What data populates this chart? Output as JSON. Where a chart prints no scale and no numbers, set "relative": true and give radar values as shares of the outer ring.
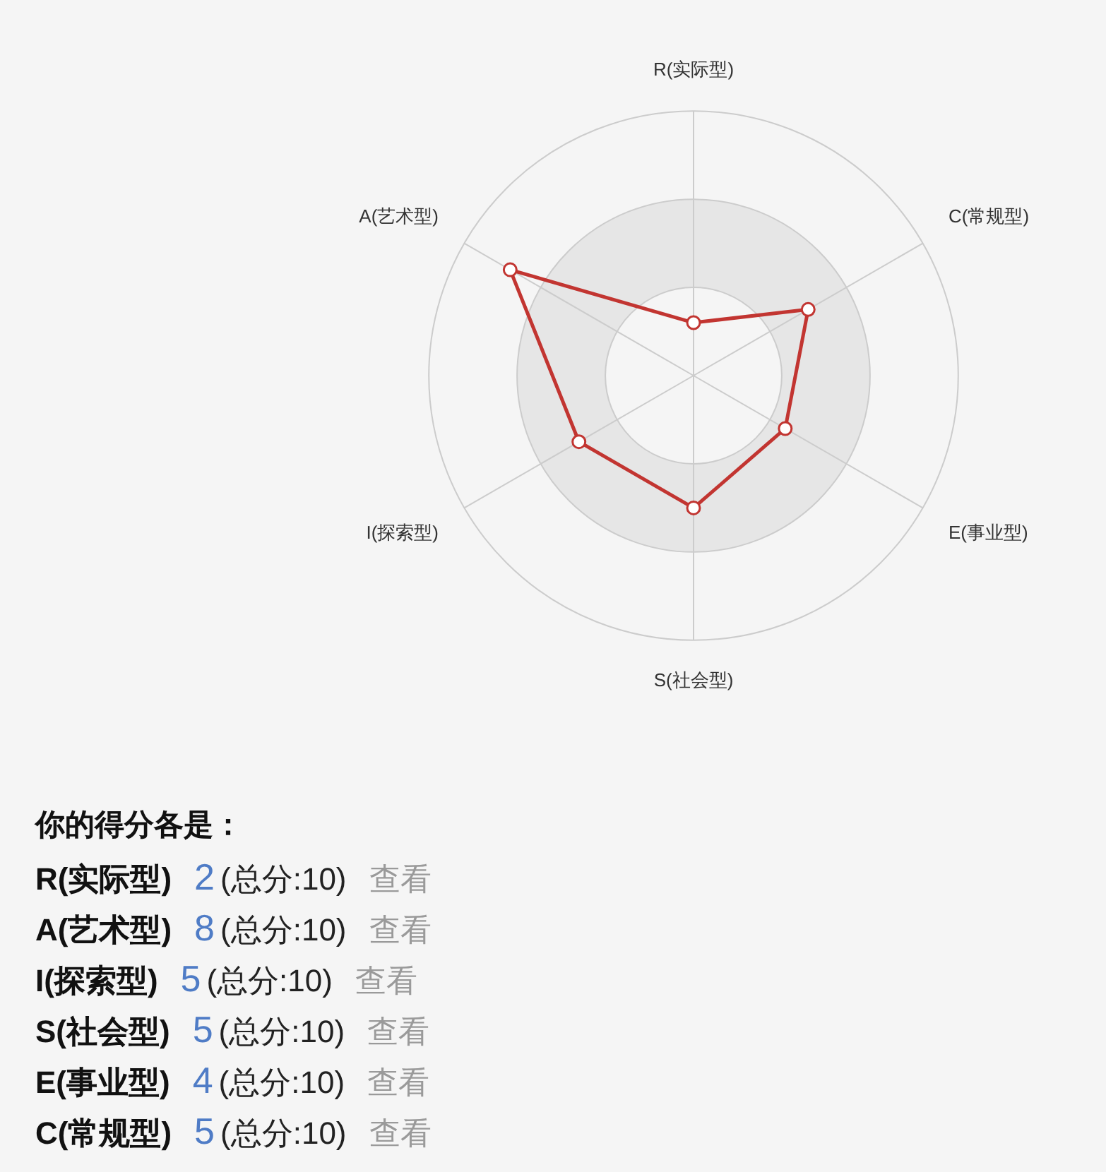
{
  "chart_data": [
    {
      "type": "radar",
      "categories": [
        "R(实际型)",
        "C(常规型)",
        "E(事业型)",
        "S(社会型)",
        "I(探索型)",
        "A(艺术型)"
      ],
      "values": [
        0.2,
        0.5,
        0.4,
        0.5,
        0.5,
        0.8
      ],
      "relative": true,
      "color": "#c23531",
      "grid": true,
      "marker": "circle",
      "line_style": "solid",
      "legend": false
    },
    {
      "type": "other",
      "title": "你的得分各是：",
      "categories": [
        "R(实际型)",
        "A(艺术型)",
        "I(探索型)",
        "S(社会型)",
        "E(事业型)",
        "C(常规型)"
      ],
      "values": [
        2,
        8,
        5,
        5,
        4,
        5
      ],
      "data_labels": true,
      "annotations": [
        "(总分:10)",
        "查看"
      ]
    }
  ]
}
